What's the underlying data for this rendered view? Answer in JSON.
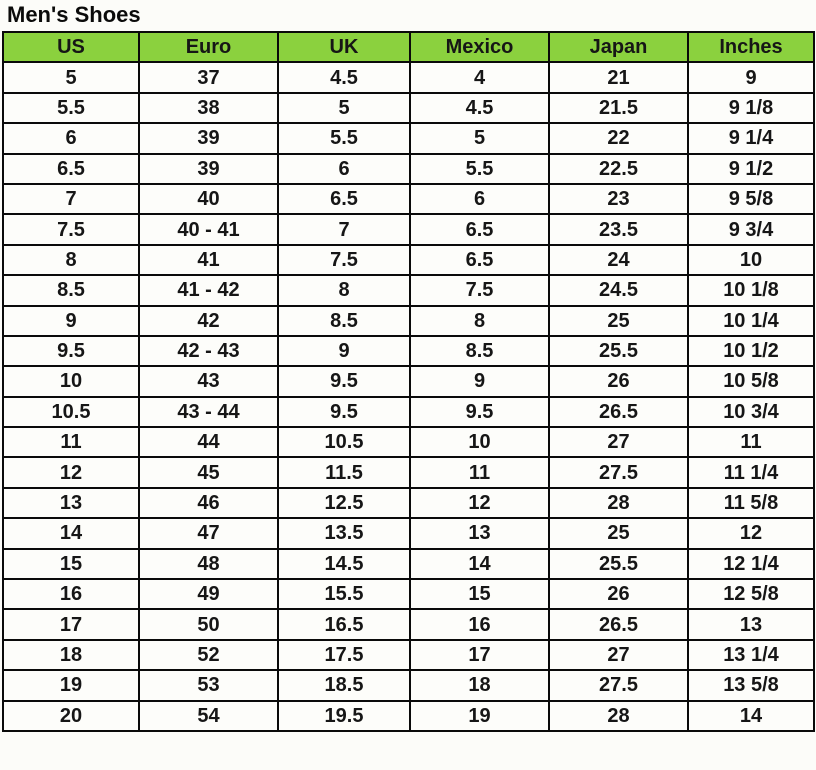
{
  "page": {
    "title": "Men's Shoes"
  },
  "colors": {
    "header_bg": "#8bd13e",
    "border": "#0a0a0a",
    "cell_bg": "#fdfdfa",
    "page_bg": "#fcfcf9",
    "text": "#161616"
  },
  "chart_data": {
    "type": "table",
    "title": "Men's Shoes",
    "columns": [
      "US",
      "Euro",
      "UK",
      "Mexico",
      "Japan",
      "Inches"
    ],
    "rows": [
      [
        "5",
        "37",
        "4.5",
        "4",
        "21",
        "9"
      ],
      [
        "5.5",
        "38",
        "5",
        "4.5",
        "21.5",
        "9 1/8"
      ],
      [
        "6",
        "39",
        "5.5",
        "5",
        "22",
        "9 1/4"
      ],
      [
        "6.5",
        "39",
        "6",
        "5.5",
        "22.5",
        "9 1/2"
      ],
      [
        "7",
        "40",
        "6.5",
        "6",
        "23",
        "9 5/8"
      ],
      [
        "7.5",
        "40 - 41",
        "7",
        "6.5",
        "23.5",
        "9 3/4"
      ],
      [
        "8",
        "41",
        "7.5",
        "6.5",
        "24",
        "10"
      ],
      [
        "8.5",
        "41 - 42",
        "8",
        "7.5",
        "24.5",
        "10 1/8"
      ],
      [
        "9",
        "42",
        "8.5",
        "8",
        "25",
        "10 1/4"
      ],
      [
        "9.5",
        "42 - 43",
        "9",
        "8.5",
        "25.5",
        "10 1/2"
      ],
      [
        "10",
        "43",
        "9.5",
        "9",
        "26",
        "10 5/8"
      ],
      [
        "10.5",
        "43 - 44",
        "9.5",
        "9.5",
        "26.5",
        "10 3/4"
      ],
      [
        "11",
        "44",
        "10.5",
        "10",
        "27",
        "11"
      ],
      [
        "12",
        "45",
        "11.5",
        "11",
        "27.5",
        "11 1/4"
      ],
      [
        "13",
        "46",
        "12.5",
        "12",
        "28",
        "11 5/8"
      ],
      [
        "14",
        "47",
        "13.5",
        "13",
        "25",
        "12"
      ],
      [
        "15",
        "48",
        "14.5",
        "14",
        "25.5",
        "12 1/4"
      ],
      [
        "16",
        "49",
        "15.5",
        "15",
        "26",
        "12 5/8"
      ],
      [
        "17",
        "50",
        "16.5",
        "16",
        "26.5",
        "13"
      ],
      [
        "18",
        "52",
        "17.5",
        "17",
        "27",
        "13 1/4"
      ],
      [
        "19",
        "53",
        "18.5",
        "18",
        "27.5",
        "13 5/8"
      ],
      [
        "20",
        "54",
        "19.5",
        "19",
        "28",
        "14"
      ]
    ]
  }
}
